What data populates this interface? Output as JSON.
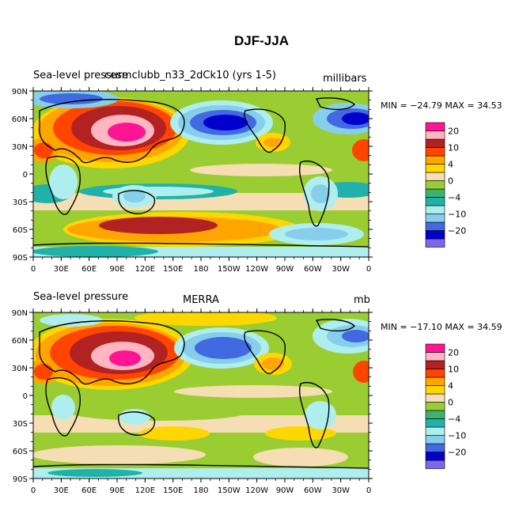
{
  "title": "DJF-JJA",
  "panels": [
    {
      "left_label": "Sea-level pressure",
      "center_label": "cesmclubb_n33_2dCk10 (yrs 1-5)",
      "right_label": "millibars",
      "minmax": "MIN = −24.79  MAX =   34.53",
      "legend_colors": [
        "#7b68ee",
        "#0000cd",
        "#4169e1",
        "#87ceeb",
        "#afeeee",
        "#20b2aa",
        "#3cb371",
        "#9acd32",
        "#f5deb3",
        "#ffd700",
        "#ffa500",
        "#ff4500",
        "#b22222",
        "#ffb6c1",
        "#ff1493"
      ],
      "legend_labels": [
        "−20",
        "−10",
        "−4",
        "0",
        "4",
        "10",
        "20"
      ]
    },
    {
      "left_label": "Sea-level pressure",
      "center_label": "MERRA",
      "right_label": "mb",
      "minmax": "MIN = −17.10  MAX =   34.59",
      "legend_colors": [
        "#7b68ee",
        "#0000cd",
        "#4169e1",
        "#87ceeb",
        "#afeeee",
        "#20b2aa",
        "#3cb371",
        "#9acd32",
        "#f5deb3",
        "#ffd700",
        "#ffa500",
        "#ff4500",
        "#b22222",
        "#ffb6c1",
        "#ff1493"
      ],
      "legend_labels": [
        "−20",
        "−10",
        "−4",
        "0",
        "4",
        "10",
        "20"
      ]
    }
  ],
  "lat_labels": [
    "90N",
    "60N",
    "30N",
    "0",
    "30S",
    "60S",
    "90S"
  ],
  "lon_labels": [
    "0",
    "30E",
    "60E",
    "90E",
    "120E",
    "150E",
    "180",
    "150W",
    "120W",
    "90W",
    "60W",
    "30W",
    "0"
  ]
}
